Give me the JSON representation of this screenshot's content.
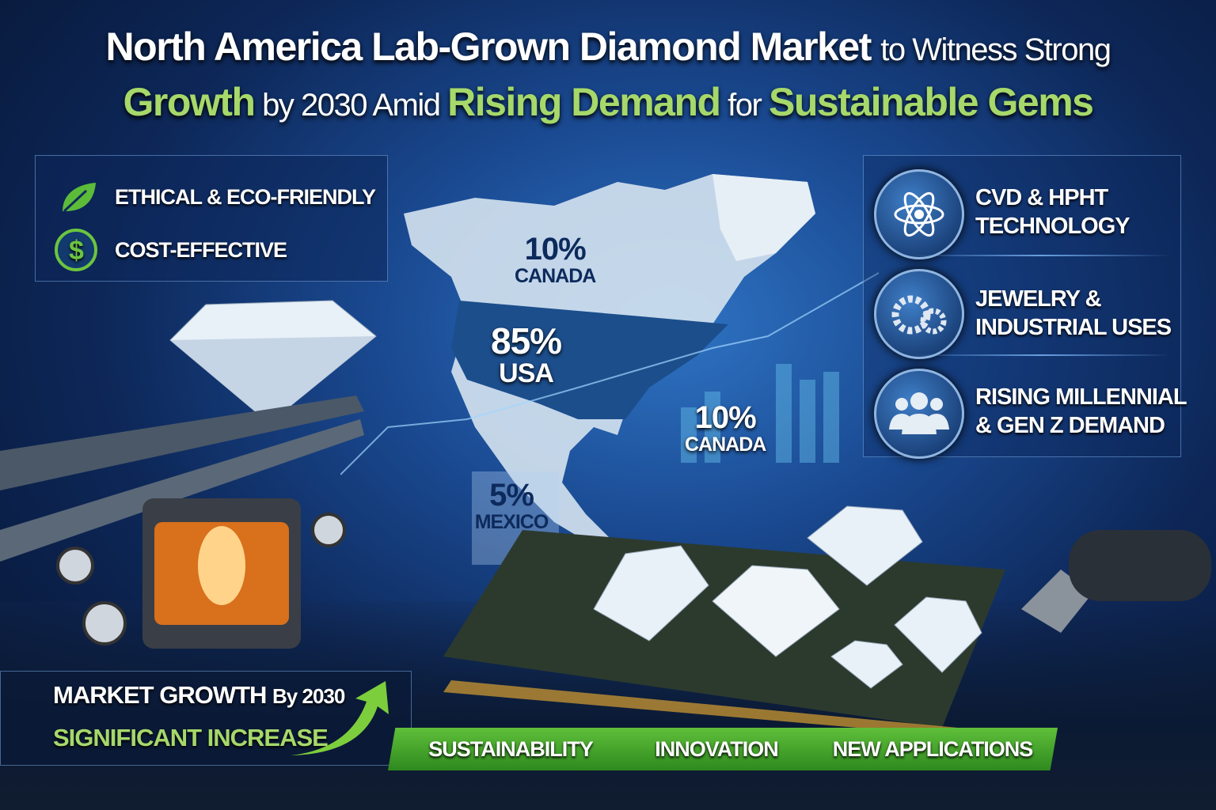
{
  "title": {
    "line1_bold": "North America Lab-Grown Diamond Market",
    "line1_light": "to Witness Strong",
    "line2": [
      {
        "text": "Growth",
        "style": "green"
      },
      {
        "text": " by 2030 Amid ",
        "style": "white"
      },
      {
        "text": "Rising Demand",
        "style": "green"
      },
      {
        "text": " for ",
        "style": "white"
      },
      {
        "text": "Sustainable Gems",
        "style": "green"
      }
    ]
  },
  "left_features": [
    {
      "icon": "leaf-icon",
      "label": "ETHICAL & ECO-FRIENDLY"
    },
    {
      "icon": "dollar-icon",
      "label": "COST-EFFECTIVE"
    }
  ],
  "right_features": [
    {
      "icon": "atom-icon",
      "line1": "CVD & HPHT",
      "line2": "TECHNOLOGY"
    },
    {
      "icon": "gears-icon",
      "line1": "JEWELRY &",
      "line2": "INDUSTRIAL USES"
    },
    {
      "icon": "people-icon",
      "line1": "RISING MILLENNIAL",
      "line2": "& GEN Z DEMAND"
    }
  ],
  "map_labels": [
    {
      "percent": "10%",
      "country": "CANADA"
    },
    {
      "percent": "85%",
      "country": "USA"
    },
    {
      "percent": "10%",
      "country": "CANADA"
    },
    {
      "percent": "5%",
      "country": "MEXICO"
    }
  ],
  "growth": {
    "line1": "MARKET GROWTH",
    "line1_small": "By 2030",
    "line2": "SIGNIFICANT INCREASE"
  },
  "banners": [
    "SUSTAINABILITY",
    "INNOVATION",
    "NEW APPLICATIONS"
  ],
  "colors": {
    "accent_green": "#a6d86a",
    "banner_green": "#4caf2f",
    "navy": "#0d2a5c"
  }
}
